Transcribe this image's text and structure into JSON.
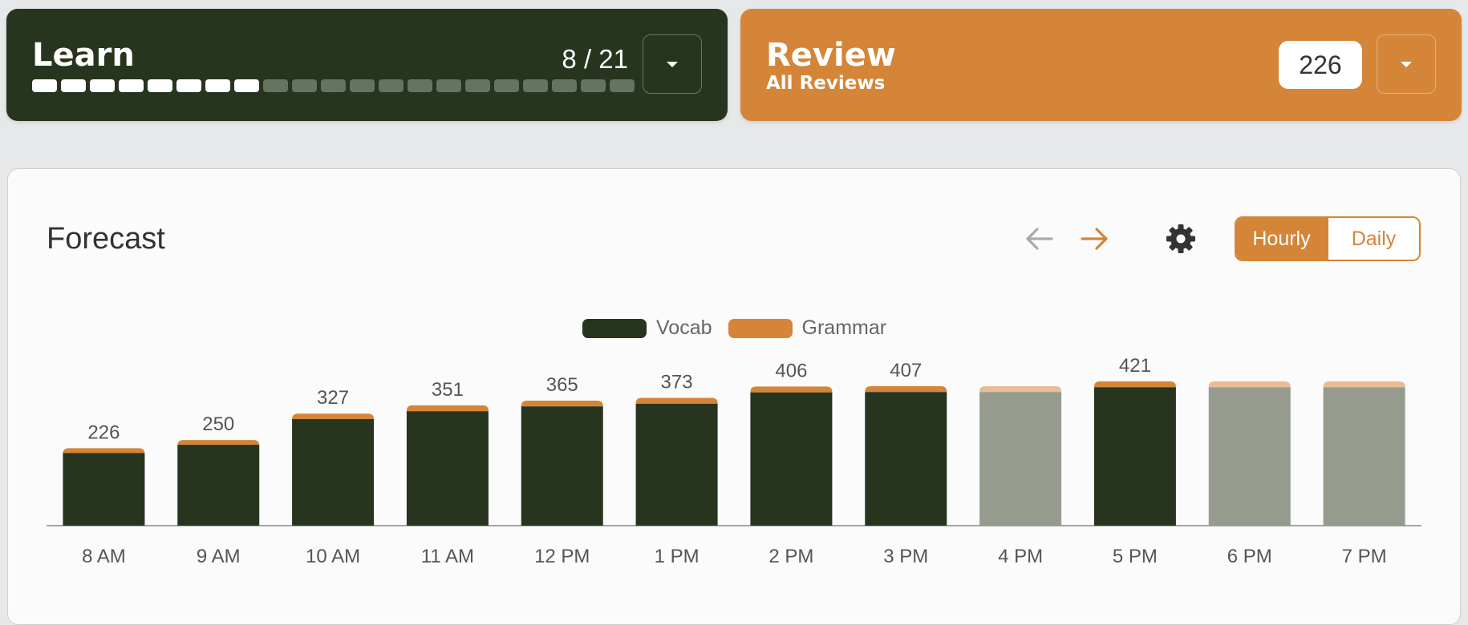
{
  "learn": {
    "title": "Learn",
    "count": "8 / 21",
    "progress": {
      "done": 8,
      "total": 21
    }
  },
  "review": {
    "title": "Review",
    "subtitle": "All Reviews",
    "count": "226"
  },
  "forecast": {
    "title": "Forecast",
    "toggle": {
      "hourly": "Hourly",
      "daily": "Daily",
      "selected": "Hourly"
    },
    "icons": {
      "prev": "arrow-left-icon",
      "next": "arrow-right-icon",
      "settings": "gear-icon"
    }
  },
  "colors": {
    "vocab": "#27351e",
    "grammar": "#d48538",
    "vocab_faded": "#959c8e",
    "grammar_faded": "#e8bd93",
    "accent": "#d48538"
  },
  "chart_data": {
    "type": "bar",
    "stacked": true,
    "categories": [
      "8 AM",
      "9 AM",
      "10 AM",
      "11 AM",
      "12 PM",
      "1 PM",
      "2 PM",
      "3 PM",
      "4 PM",
      "5 PM",
      "6 PM",
      "7 PM"
    ],
    "series": [
      {
        "name": "Vocab",
        "values": [
          212,
          236,
          311,
          334,
          348,
          356,
          389,
          390,
          390,
          404,
          404,
          404
        ]
      },
      {
        "name": "Grammar",
        "values": [
          14,
          14,
          16,
          17,
          17,
          17,
          17,
          17,
          17,
          17,
          17,
          17
        ]
      }
    ],
    "totals": [
      "226",
      "250",
      "327",
      "351",
      "365",
      "373",
      "406",
      "407",
      "",
      "421",
      "",
      ""
    ],
    "faded": [
      false,
      false,
      false,
      false,
      false,
      false,
      false,
      false,
      true,
      false,
      true,
      true
    ],
    "ylim": [
      0,
      421
    ],
    "legend": "top-center",
    "grid": false
  }
}
